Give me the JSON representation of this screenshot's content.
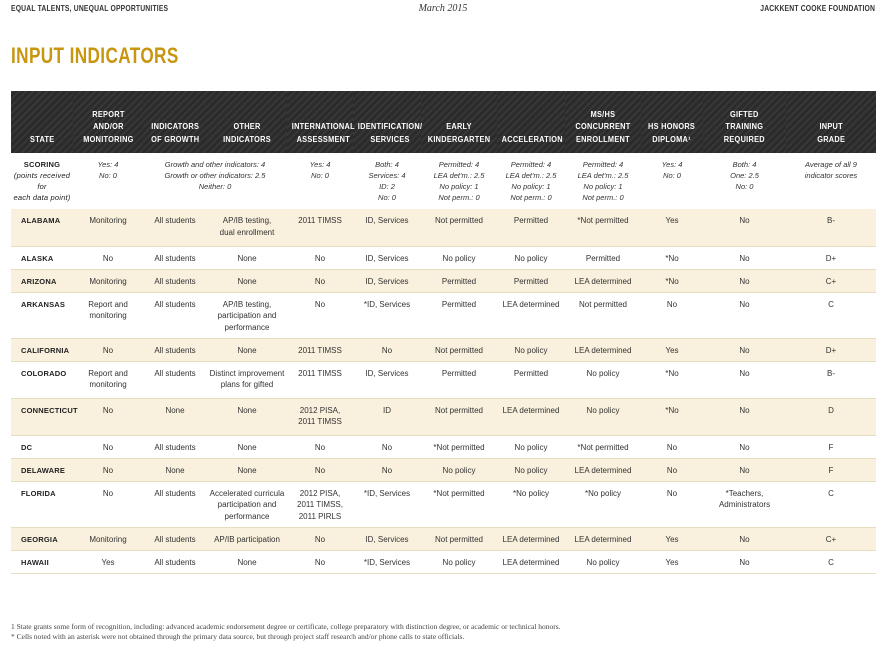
{
  "header": {
    "left": "EQUAL TALENTS, UNEQUAL OPPORTUNITIES",
    "center": "March 2015",
    "right": "JACKKENT COOKE FOUNDATION"
  },
  "title": "INPUT INDICATORS",
  "columns": [
    [
      "STATE"
    ],
    [
      "REPORT",
      "AND/OR",
      "MONITORING"
    ],
    [
      "INDICATORS",
      "OF GROWTH"
    ],
    [
      "OTHER",
      "INDICATORS"
    ],
    [
      "INTERNATIONAL",
      "ASSESSMENT"
    ],
    [
      "IDENTIFICATION/",
      "SERVICES"
    ],
    [
      "EARLY",
      "KINDERGARTEN"
    ],
    [
      "ACCELERATION"
    ],
    [
      "MS/HS",
      "CONCURRENT",
      "ENROLLMENT"
    ],
    [
      "HS HONORS",
      "DIPLOMA¹"
    ],
    [
      "GIFTED",
      "TRAINING",
      "REQUIRED"
    ],
    [
      "INPUT",
      "GRADE"
    ]
  ],
  "scoring": {
    "label": "SCORING",
    "sub": [
      "(points received for",
      "each data point)"
    ],
    "report": [
      "Yes: 4",
      "No: 0"
    ],
    "growth_other": [
      "Growth and other indicators: 4",
      "Growth or other indicators: 2.5",
      "Neither: 0"
    ],
    "international": [
      "Yes: 4",
      "No: 0"
    ],
    "identification": [
      "Both: 4",
      "Services: 4",
      "ID: 2",
      "No: 0"
    ],
    "early": [
      "Permitted: 4",
      "LEA det'm.: 2.5",
      "No policy: 1",
      "Not perm.: 0"
    ],
    "acceleration": [
      "Permitted: 4",
      "LEA det'm.: 2.5",
      "No policy: 1",
      "Not perm.: 0"
    ],
    "concurrent": [
      "Permitted: 4",
      "LEA det'm.: 2.5",
      "No policy: 1",
      "Not perm.: 0"
    ],
    "diploma": [
      "Yes: 4",
      "No: 0"
    ],
    "gifted": [
      "Both: 4",
      "One: 2.5",
      "No: 0"
    ],
    "grade": [
      "Average of all 9",
      "indicator scores"
    ]
  },
  "rows": [
    {
      "state": "ALABAMA",
      "cells": [
        [
          "Monitoring"
        ],
        [
          "All students"
        ],
        [
          "AP/IB testing,",
          "dual enrollment"
        ],
        [
          "2011 TIMSS"
        ],
        [
          "ID, Services"
        ],
        [
          "Not permitted"
        ],
        [
          "Permitted"
        ],
        [
          "*Not permitted"
        ],
        [
          "Yes"
        ],
        [
          "No"
        ],
        [
          "B-"
        ]
      ]
    },
    {
      "state": "ALASKA",
      "cells": [
        [
          "No"
        ],
        [
          "All students"
        ],
        [
          "None"
        ],
        [
          "No"
        ],
        [
          "ID, Services"
        ],
        [
          "No policy"
        ],
        [
          "No policy"
        ],
        [
          "Permitted"
        ],
        [
          "*No"
        ],
        [
          "No"
        ],
        [
          "D+"
        ]
      ]
    },
    {
      "state": "ARIZONA",
      "cells": [
        [
          "Monitoring"
        ],
        [
          "All students"
        ],
        [
          "None"
        ],
        [
          "No"
        ],
        [
          "ID, Services"
        ],
        [
          "Permitted"
        ],
        [
          "Permitted"
        ],
        [
          "LEA determined"
        ],
        [
          "*No"
        ],
        [
          "No"
        ],
        [
          "C+"
        ]
      ]
    },
    {
      "state": "ARKANSAS",
      "cells": [
        [
          "Report and",
          "monitoring"
        ],
        [
          "All students"
        ],
        [
          "AP/IB testing,",
          "participation and",
          "performance"
        ],
        [
          "No"
        ],
        [
          "*ID, Services"
        ],
        [
          "Permitted"
        ],
        [
          "LEA determined"
        ],
        [
          "Not permitted"
        ],
        [
          "No"
        ],
        [
          "No"
        ],
        [
          "C"
        ]
      ]
    },
    {
      "state": "CALIFORNIA",
      "cells": [
        [
          "No"
        ],
        [
          "All students"
        ],
        [
          "None"
        ],
        [
          "2011 TIMSS"
        ],
        [
          "No"
        ],
        [
          "Not permitted"
        ],
        [
          "No policy"
        ],
        [
          "LEA determined"
        ],
        [
          "Yes"
        ],
        [
          "No"
        ],
        [
          "D+"
        ]
      ]
    },
    {
      "state": "COLORADO",
      "cells": [
        [
          "Report and",
          "monitoring"
        ],
        [
          "All students"
        ],
        [
          "Distinct improvement",
          "plans for gifted"
        ],
        [
          "2011 TIMSS"
        ],
        [
          "ID, Services"
        ],
        [
          "Permitted"
        ],
        [
          "Permitted"
        ],
        [
          "No policy"
        ],
        [
          "*No"
        ],
        [
          "No"
        ],
        [
          "B-"
        ]
      ]
    },
    {
      "state": "CONNECTICUT",
      "cells": [
        [
          "No"
        ],
        [
          "None"
        ],
        [
          "None"
        ],
        [
          "2012 PISA,",
          "2011 TIMSS"
        ],
        [
          "ID"
        ],
        [
          "Not permitted"
        ],
        [
          "LEA determined"
        ],
        [
          "No policy"
        ],
        [
          "*No"
        ],
        [
          "No"
        ],
        [
          "D"
        ]
      ]
    },
    {
      "state": "DC",
      "cells": [
        [
          "No"
        ],
        [
          "All students"
        ],
        [
          "None"
        ],
        [
          "No"
        ],
        [
          "No"
        ],
        [
          "*Not permitted"
        ],
        [
          "No policy"
        ],
        [
          "*Not permitted"
        ],
        [
          "No"
        ],
        [
          "No"
        ],
        [
          "F"
        ]
      ]
    },
    {
      "state": "DELAWARE",
      "cells": [
        [
          "No"
        ],
        [
          "None"
        ],
        [
          "None"
        ],
        [
          "No"
        ],
        [
          "No"
        ],
        [
          "No policy"
        ],
        [
          "No policy"
        ],
        [
          "LEA determined"
        ],
        [
          "No"
        ],
        [
          "No"
        ],
        [
          "F"
        ]
      ]
    },
    {
      "state": "FLORIDA",
      "cells": [
        [
          "No"
        ],
        [
          "All students"
        ],
        [
          "Accelerated curricula",
          "participation and",
          "performance"
        ],
        [
          "2012 PISA,",
          "2011 TIMSS,",
          "2011 PIRLS"
        ],
        [
          "*ID, Services"
        ],
        [
          "*Not permitted"
        ],
        [
          "*No policy"
        ],
        [
          "*No policy"
        ],
        [
          "No"
        ],
        [
          "*Teachers,",
          "Administrators"
        ],
        [
          "C"
        ]
      ]
    },
    {
      "state": "GEORGIA",
      "cells": [
        [
          "Monitoring"
        ],
        [
          "All students"
        ],
        [
          "AP/IB participation"
        ],
        [
          "No"
        ],
        [
          "ID, Services"
        ],
        [
          "Not permitted"
        ],
        [
          "LEA determined"
        ],
        [
          "LEA determined"
        ],
        [
          "Yes"
        ],
        [
          "No"
        ],
        [
          "C+"
        ]
      ]
    },
    {
      "state": "HAWAII",
      "cells": [
        [
          "Yes"
        ],
        [
          "All students"
        ],
        [
          "None"
        ],
        [
          "No"
        ],
        [
          "*ID, Services"
        ],
        [
          "No policy"
        ],
        [
          "LEA determined"
        ],
        [
          "No policy"
        ],
        [
          "Yes"
        ],
        [
          "No"
        ],
        [
          "C"
        ]
      ]
    }
  ],
  "footnotes": [
    "1  State grants some form of recognition, including: advanced academic endorsement degree or certificate, college preparatory with distinction degree, or academic or technical honors.",
    "*  Cells noted with an asterisk were not obtained through the primary data source, but through project staff research and/or phone calls to state officials."
  ]
}
